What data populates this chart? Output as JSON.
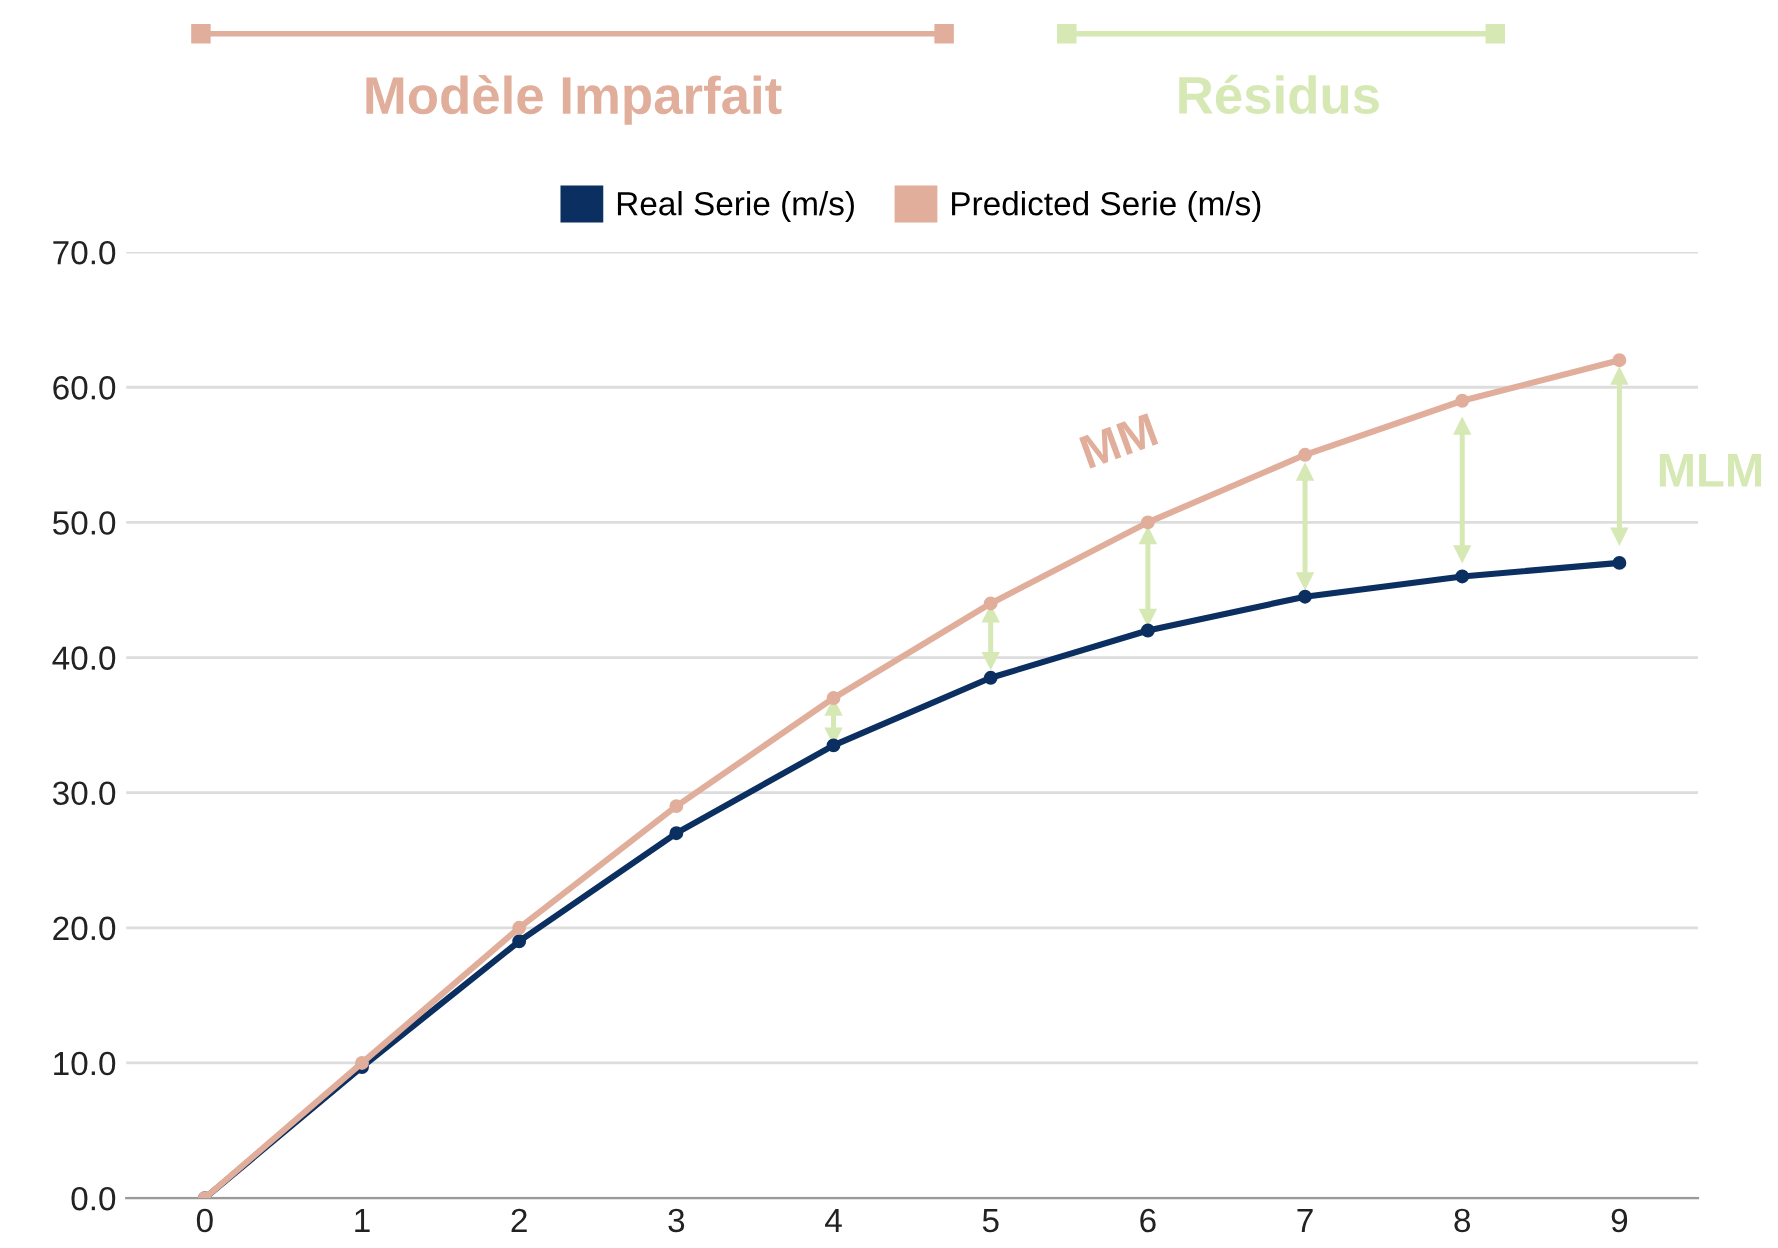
{
  "chart_data": {
    "type": "line",
    "x": [
      0,
      1,
      2,
      3,
      4,
      5,
      6,
      7,
      8,
      9
    ],
    "series": [
      {
        "name": "Real Serie (m/s)",
        "color": "#0b2f60",
        "values": [
          0,
          9.7,
          19,
          27,
          33.5,
          38.5,
          42,
          44.5,
          46,
          47
        ],
        "errors": [
          null,
          null,
          null,
          null,
          [
            34.2,
            36.3
          ],
          [
            39.8,
            43.2
          ],
          [
            43,
            49
          ],
          [
            45.7,
            53.7
          ],
          [
            47.7,
            57.1
          ],
          [
            49,
            60.8
          ]
        ]
      },
      {
        "name": "Predicted Serie (m/s)",
        "color": "#e0ae9b",
        "values": [
          0,
          10,
          20,
          29,
          37,
          44,
          50,
          55,
          59,
          62
        ]
      }
    ],
    "annotations": [
      "Modèle Imparfait",
      "Résidus",
      {
        "text": "MM",
        "x": 6,
        "y": 50
      },
      "MLM"
    ],
    "xlim": [
      -0.5,
      9.5
    ],
    "xticks": [
      0,
      1,
      2,
      3,
      4,
      5,
      6,
      7,
      8,
      9
    ],
    "ylim": [
      0,
      70
    ],
    "yticks": [
      {
        "value": 0,
        "label": "0.0"
      },
      {
        "value": 10,
        "label": "10.0"
      },
      {
        "value": 20,
        "label": "20.0"
      },
      {
        "value": 30,
        "label": "30.0"
      },
      {
        "value": 40,
        "label": "40.0"
      },
      {
        "value": 50,
        "label": "50.0"
      },
      {
        "value": 60,
        "label": "60.0"
      },
      {
        "value": 70,
        "label": "70.0"
      }
    ],
    "grid": "y",
    "legend": "top",
    "marker": "circle",
    "line_style": "solid"
  }
}
